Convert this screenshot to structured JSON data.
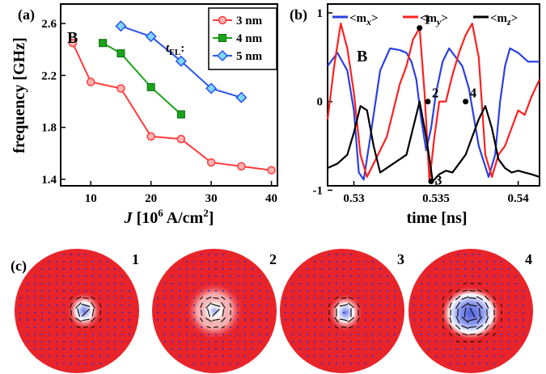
{
  "chart_data": [
    {
      "type": "line",
      "panel_label": "(a)",
      "annotation": "B",
      "xlabel": {
        "main": "J",
        "rest": " [10",
        "sup": "6",
        "rest2": " A/cm",
        "sup2": "2",
        "end": "]"
      },
      "ylabel": "frequency [GHz]",
      "xlim": [
        5,
        41
      ],
      "ylim": [
        1.35,
        2.75
      ],
      "xticks": [
        "10",
        "20",
        "30",
        "40"
      ],
      "yticks": [
        "1.4",
        "1.8",
        "2.2",
        "2.6"
      ],
      "legend": {
        "title": "t",
        "title_sub": "FL",
        "title_end": ":",
        "placement": "top-right"
      },
      "series": [
        {
          "name": "3 nm",
          "color": "#ff3b3b",
          "marker": "circle",
          "x": [
            7,
            10,
            15,
            20,
            25,
            30,
            35,
            40
          ],
          "y": [
            2.45,
            2.15,
            2.1,
            1.73,
            1.71,
            1.53,
            1.5,
            1.47
          ]
        },
        {
          "name": "4 nm",
          "color": "#1aa31a",
          "marker": "square",
          "x": [
            12,
            15,
            20,
            25
          ],
          "y": [
            2.45,
            2.37,
            2.11,
            1.9
          ]
        },
        {
          "name": "5 nm",
          "color": "#2a55e6",
          "marker": "diamond",
          "x": [
            15,
            20,
            25,
            30,
            35
          ],
          "y": [
            2.58,
            2.5,
            2.31,
            2.1,
            2.03
          ]
        }
      ]
    },
    {
      "type": "line",
      "panel_label": "(b)",
      "annotation": "B",
      "xlabel": "time [ns]",
      "xlim": [
        0.5284,
        0.5413
      ],
      "ylim": [
        -0.95,
        1.1
      ],
      "xticks": [
        "0.53",
        "0.535",
        "0.54"
      ],
      "yticks": [
        "-1",
        "0",
        "1"
      ],
      "legend_labels": [
        "<m",
        "x",
        ">",
        "<m",
        "y",
        ">",
        "<m",
        "z",
        ">"
      ],
      "series": [
        {
          "name": "<mx>",
          "color": "#2a40e0",
          "style": "solid",
          "x": [
            0.5284,
            0.529,
            0.5296,
            0.53,
            0.5303,
            0.5306,
            0.531,
            0.5316,
            0.5322,
            0.5328,
            0.5332,
            0.5335,
            0.5338,
            0.5341,
            0.5344,
            0.5347,
            0.535,
            0.5354,
            0.5358,
            0.5362,
            0.5366,
            0.537,
            0.5376,
            0.5382,
            0.5386,
            0.5389,
            0.5392,
            0.5395,
            0.54,
            0.5406,
            0.5413
          ],
          "y": [
            0.4,
            0.55,
            0.35,
            -0.1,
            -0.8,
            -0.88,
            -0.4,
            0.35,
            0.6,
            0.58,
            0.55,
            0.45,
            0.25,
            -0.2,
            -0.55,
            -0.3,
            0.1,
            0.45,
            0.6,
            0.5,
            0.4,
            0.15,
            -0.5,
            -0.85,
            -0.6,
            0.0,
            0.4,
            0.6,
            0.55,
            0.45,
            0.45
          ]
        },
        {
          "name": "<my>",
          "color": "#ff2020",
          "style": "solid",
          "x": [
            0.5284,
            0.5288,
            0.5292,
            0.5296,
            0.53,
            0.5304,
            0.5308,
            0.5312,
            0.5316,
            0.532,
            0.5324,
            0.5328,
            0.5332,
            0.5336,
            0.534,
            0.5343,
            0.5346,
            0.5349,
            0.5352,
            0.5356,
            0.536,
            0.5364,
            0.5368,
            0.5372,
            0.5376,
            0.538,
            0.5384,
            0.5388,
            0.5392,
            0.5396,
            0.54,
            0.5404,
            0.5408,
            0.5413
          ],
          "y": [
            -0.2,
            0.4,
            0.88,
            0.6,
            0.1,
            -0.6,
            -0.85,
            -0.7,
            -0.55,
            -0.4,
            -0.1,
            0.2,
            0.4,
            0.7,
            0.83,
            0.1,
            -0.9,
            -0.4,
            0.0,
            0.0,
            0.3,
            0.55,
            0.75,
            0.88,
            0.5,
            -0.6,
            -0.85,
            -0.6,
            -0.5,
            -0.3,
            -0.1,
            -0.15,
            0.05,
            0.25
          ]
        },
        {
          "name": "<mz>",
          "color": "#000000",
          "style": "solid",
          "x": [
            0.5284,
            0.529,
            0.5296,
            0.53,
            0.5304,
            0.5308,
            0.5312,
            0.5316,
            0.532,
            0.5324,
            0.5328,
            0.5332,
            0.5336,
            0.534,
            0.5344,
            0.5348,
            0.5352,
            0.5356,
            0.536,
            0.5364,
            0.5368,
            0.5372,
            0.5376,
            0.538,
            0.5384,
            0.5388,
            0.5392,
            0.5396,
            0.54,
            0.5404,
            0.5408,
            0.5413
          ],
          "y": [
            -0.75,
            -0.7,
            -0.6,
            -0.35,
            -0.05,
            -0.1,
            -0.5,
            -0.8,
            -0.75,
            -0.7,
            -0.65,
            -0.6,
            -0.3,
            0.0,
            -0.4,
            -0.9,
            -0.82,
            -0.78,
            -0.8,
            -0.7,
            -0.6,
            -0.4,
            -0.2,
            -0.05,
            -0.3,
            -0.65,
            -0.75,
            -0.8,
            -0.78,
            -0.8,
            -0.82,
            -0.85
          ]
        }
      ],
      "points": [
        {
          "label": "1",
          "x": 0.534,
          "y": 0.83
        },
        {
          "label": "2",
          "x": 0.5345,
          "y": 0.0
        },
        {
          "label": "3",
          "x": 0.5347,
          "y": -0.9
        },
        {
          "label": "4",
          "x": 0.5368,
          "y": 0.0
        }
      ]
    }
  ],
  "panel_c": {
    "label": "(c)",
    "snapshots": [
      "1",
      "2",
      "3",
      "4"
    ]
  },
  "colors": {
    "disk_red": "#e8242b",
    "core_blue": "#6b7fe8",
    "arrow": "#2b2bd0"
  }
}
